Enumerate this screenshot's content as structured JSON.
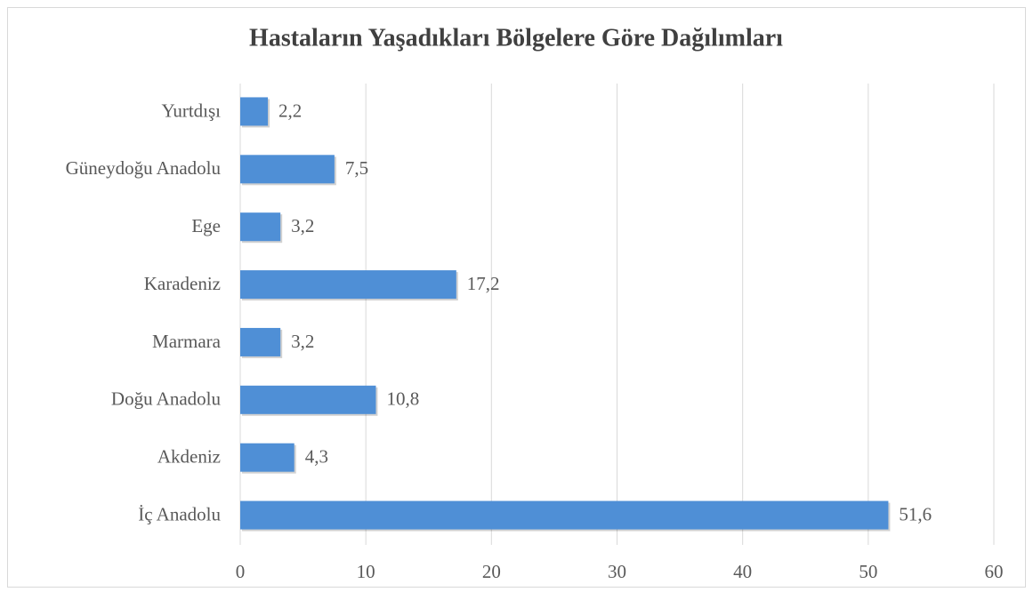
{
  "chart_data": {
    "type": "barh",
    "title": "Hastaların Yaşadıkları Bölgelere Göre Dağılımları",
    "categories": [
      "İç Anadolu",
      "Akdeniz",
      "Doğu Anadolu",
      "Marmara",
      "Karadeniz",
      "Ege",
      "Güneydoğu Anadolu",
      "Yurtdışı"
    ],
    "values": [
      51.6,
      4.3,
      10.8,
      3.2,
      17.2,
      3.2,
      7.5,
      2.2
    ],
    "value_labels": [
      "51,6",
      "4,3",
      "10,8",
      "3,2",
      "17,2",
      "3,2",
      "7,5",
      "2,2"
    ],
    "color": "#4f8fd6",
    "xlim": [
      0,
      60
    ],
    "xticks": [
      0,
      10,
      20,
      30,
      40,
      50,
      60
    ],
    "grid": true
  }
}
